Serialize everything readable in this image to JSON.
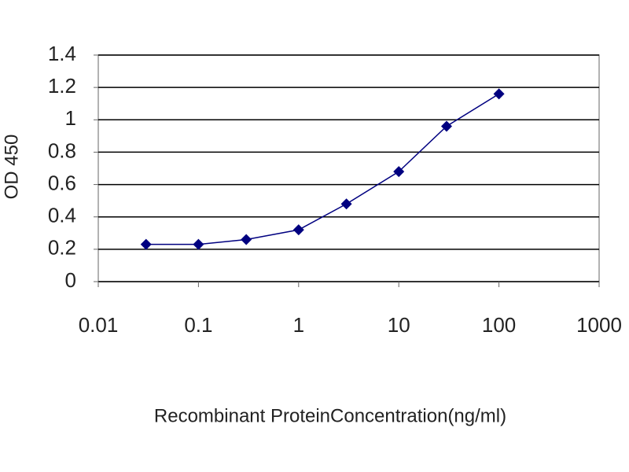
{
  "chart_data": {
    "type": "line",
    "xlabel": "Recombinant ProteinConcentration(ng/ml)",
    "ylabel": "OD 450",
    "xscale": "log",
    "x": [
      0.03,
      0.1,
      0.3,
      1,
      3,
      10,
      30,
      100
    ],
    "series": [
      {
        "color": "#000080",
        "values": [
          0.23,
          0.23,
          0.26,
          0.32,
          0.48,
          0.68,
          0.96,
          1.16
        ]
      }
    ],
    "xlim": [
      0.01,
      1000
    ],
    "xticks": [
      0.01,
      0.1,
      1,
      10,
      100,
      1000
    ],
    "ylim": [
      0,
      1.4
    ],
    "yticks": [
      0,
      0.2,
      0.4,
      0.6,
      0.8,
      1,
      1.2,
      1.4
    ],
    "grid": true
  }
}
